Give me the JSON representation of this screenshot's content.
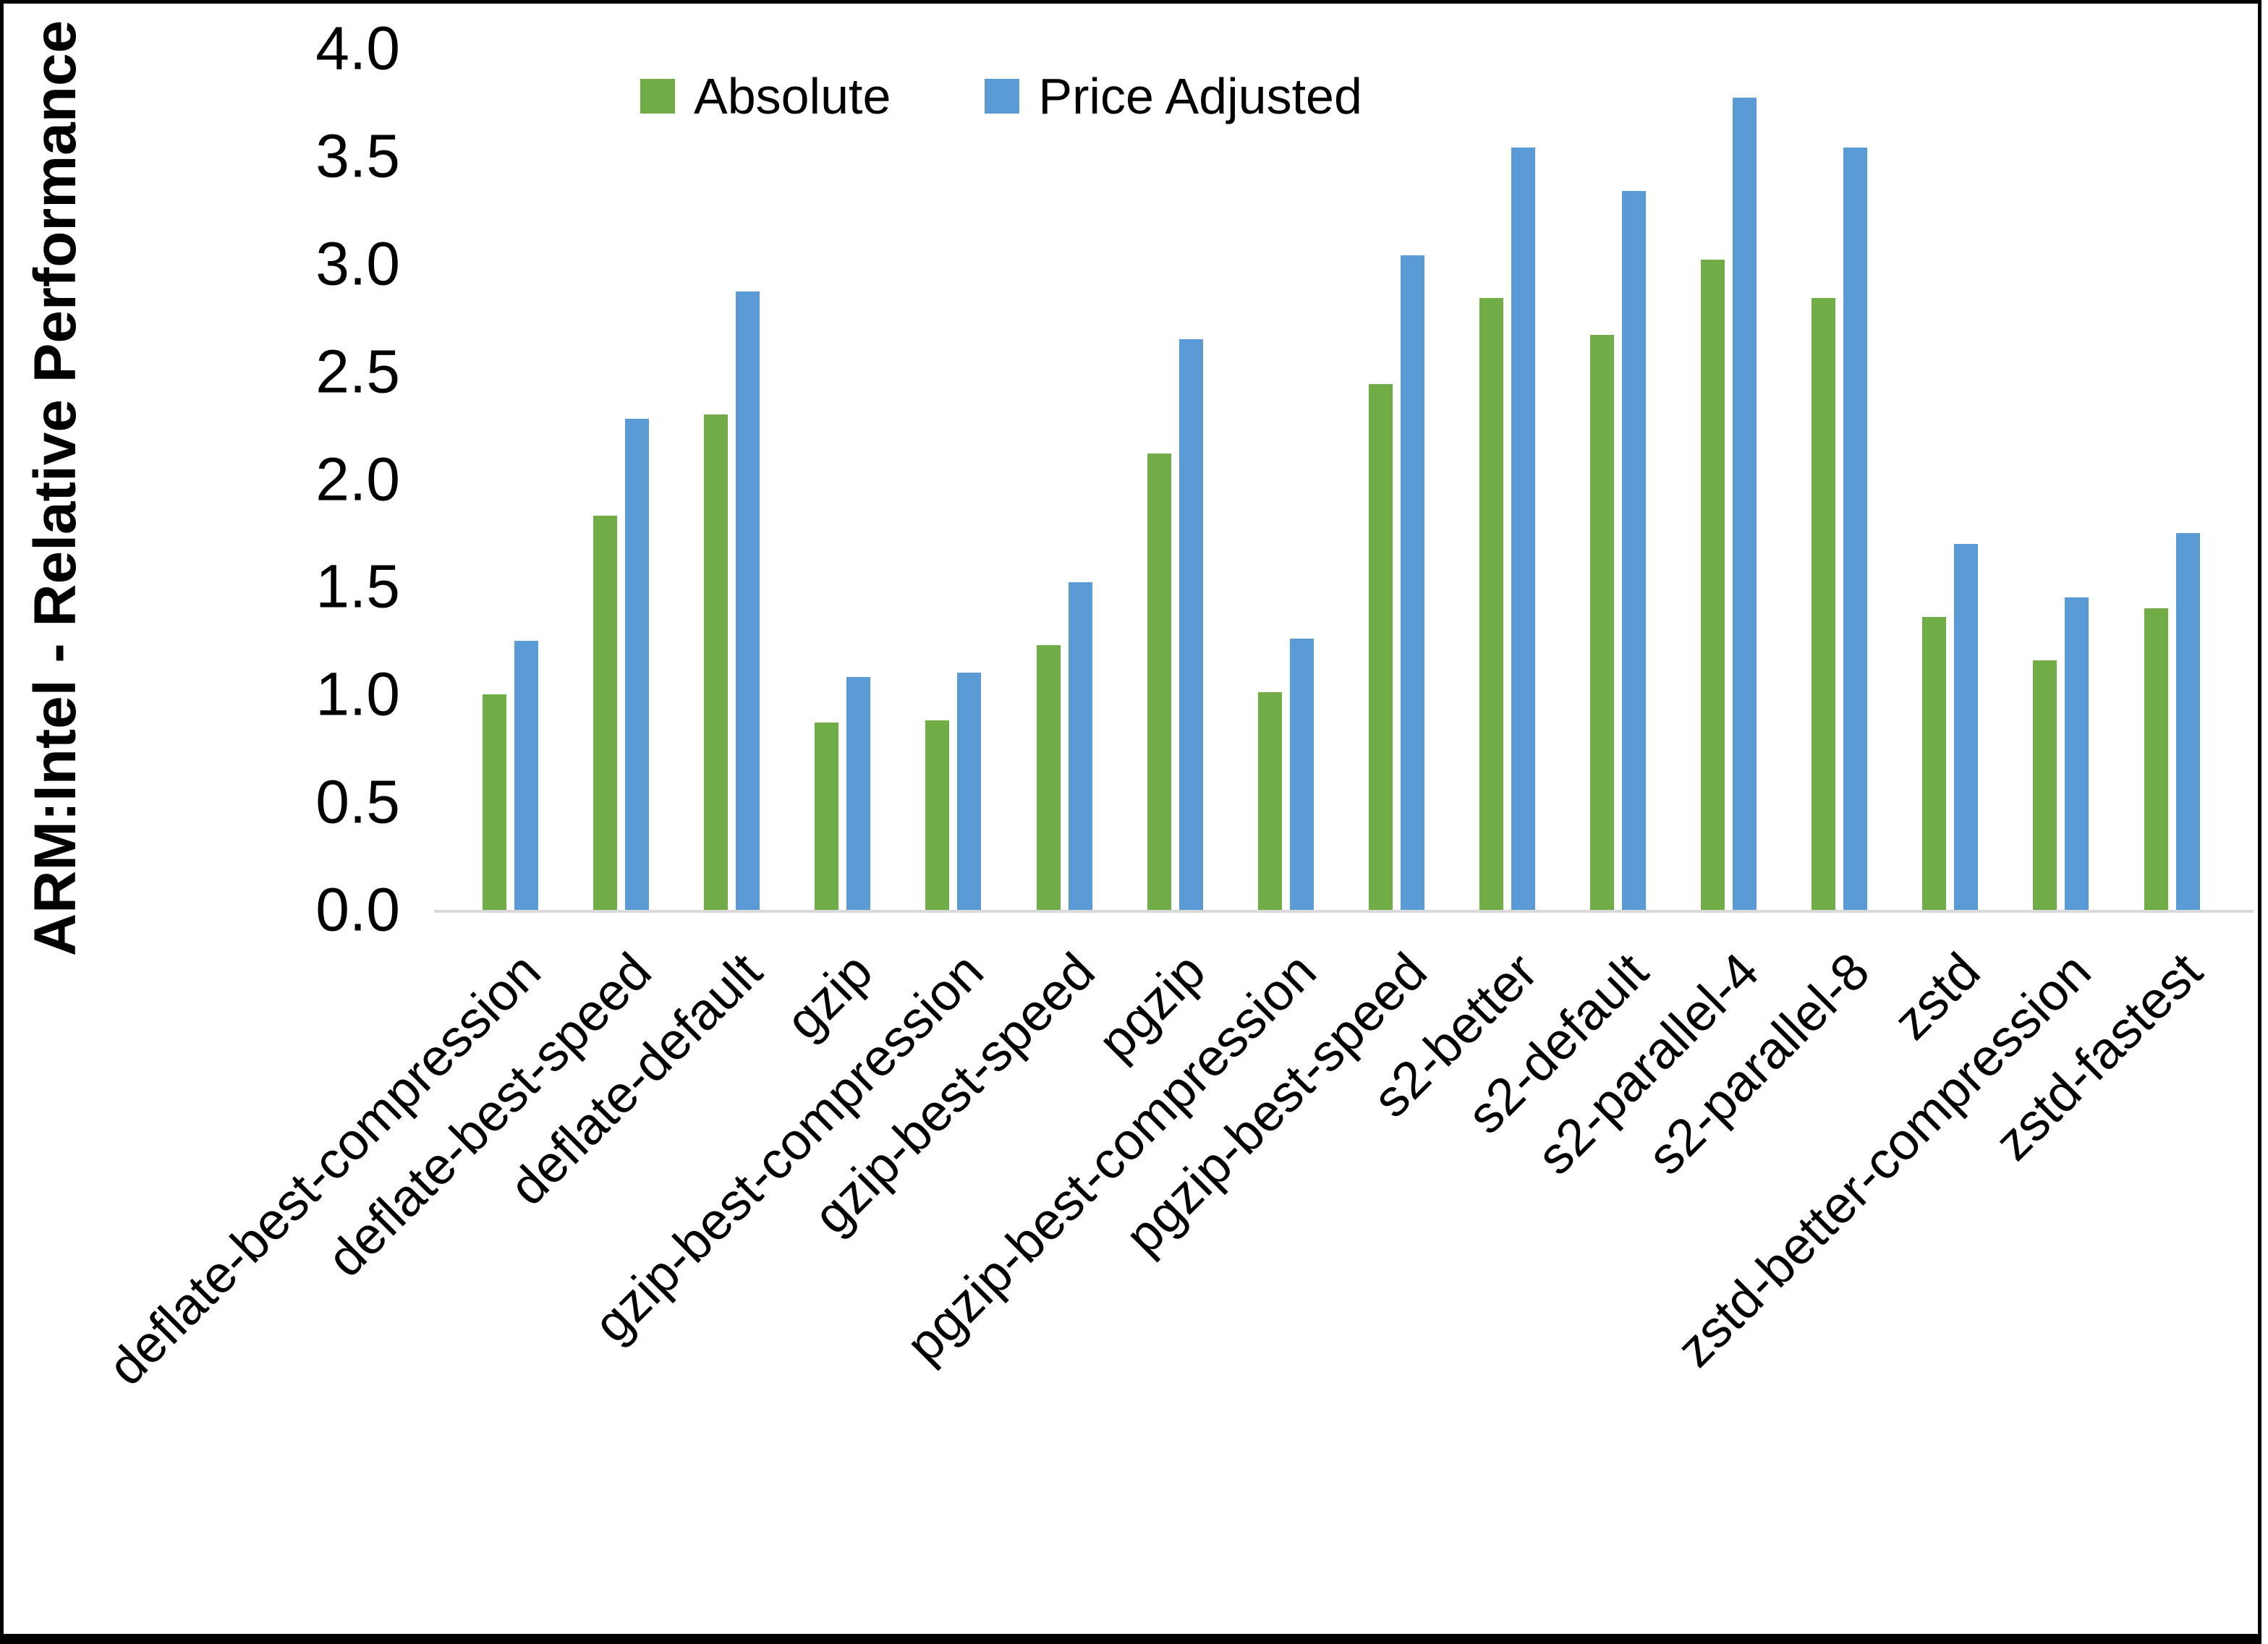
{
  "chart_data": {
    "type": "bar",
    "title": "",
    "ylabel": "ARM:Intel - Relative Performance",
    "xlabel": "",
    "ylim": [
      0.0,
      4.0
    ],
    "ytick_step": 0.5,
    "ytick_labels": [
      "0.0",
      "0.5",
      "1.0",
      "1.5",
      "2.0",
      "2.5",
      "3.0",
      "3.5",
      "4.0"
    ],
    "grid": false,
    "legend_position": "top-center",
    "axis_line_color": "#d9d9d9",
    "categories": [
      "deflate-best-compression",
      "deflate-best-speed",
      "deflate-default",
      "gzip",
      "gzip-best-compression",
      "gzip-best-speed",
      "pgzip",
      "pgzip-best-compression",
      "pgzip-best-speed",
      "s2-better",
      "s2-default",
      "s2-parallel-4",
      "s2-parallel-8",
      "zstd",
      "zstd-better-compression",
      "zstd-fastest"
    ],
    "series": [
      {
        "name": "Absolute",
        "color": "#70AD47",
        "values": [
          1.0,
          1.83,
          2.3,
          0.87,
          0.88,
          1.23,
          2.12,
          1.01,
          2.44,
          2.84,
          2.67,
          3.02,
          2.84,
          1.36,
          1.16,
          1.4
        ]
      },
      {
        "name": "Price Adjusted",
        "color": "#5B9BD5",
        "values": [
          1.25,
          2.28,
          2.87,
          1.08,
          1.1,
          1.52,
          2.65,
          1.26,
          3.04,
          3.54,
          3.34,
          3.77,
          3.54,
          1.7,
          1.45,
          1.75
        ]
      }
    ]
  }
}
